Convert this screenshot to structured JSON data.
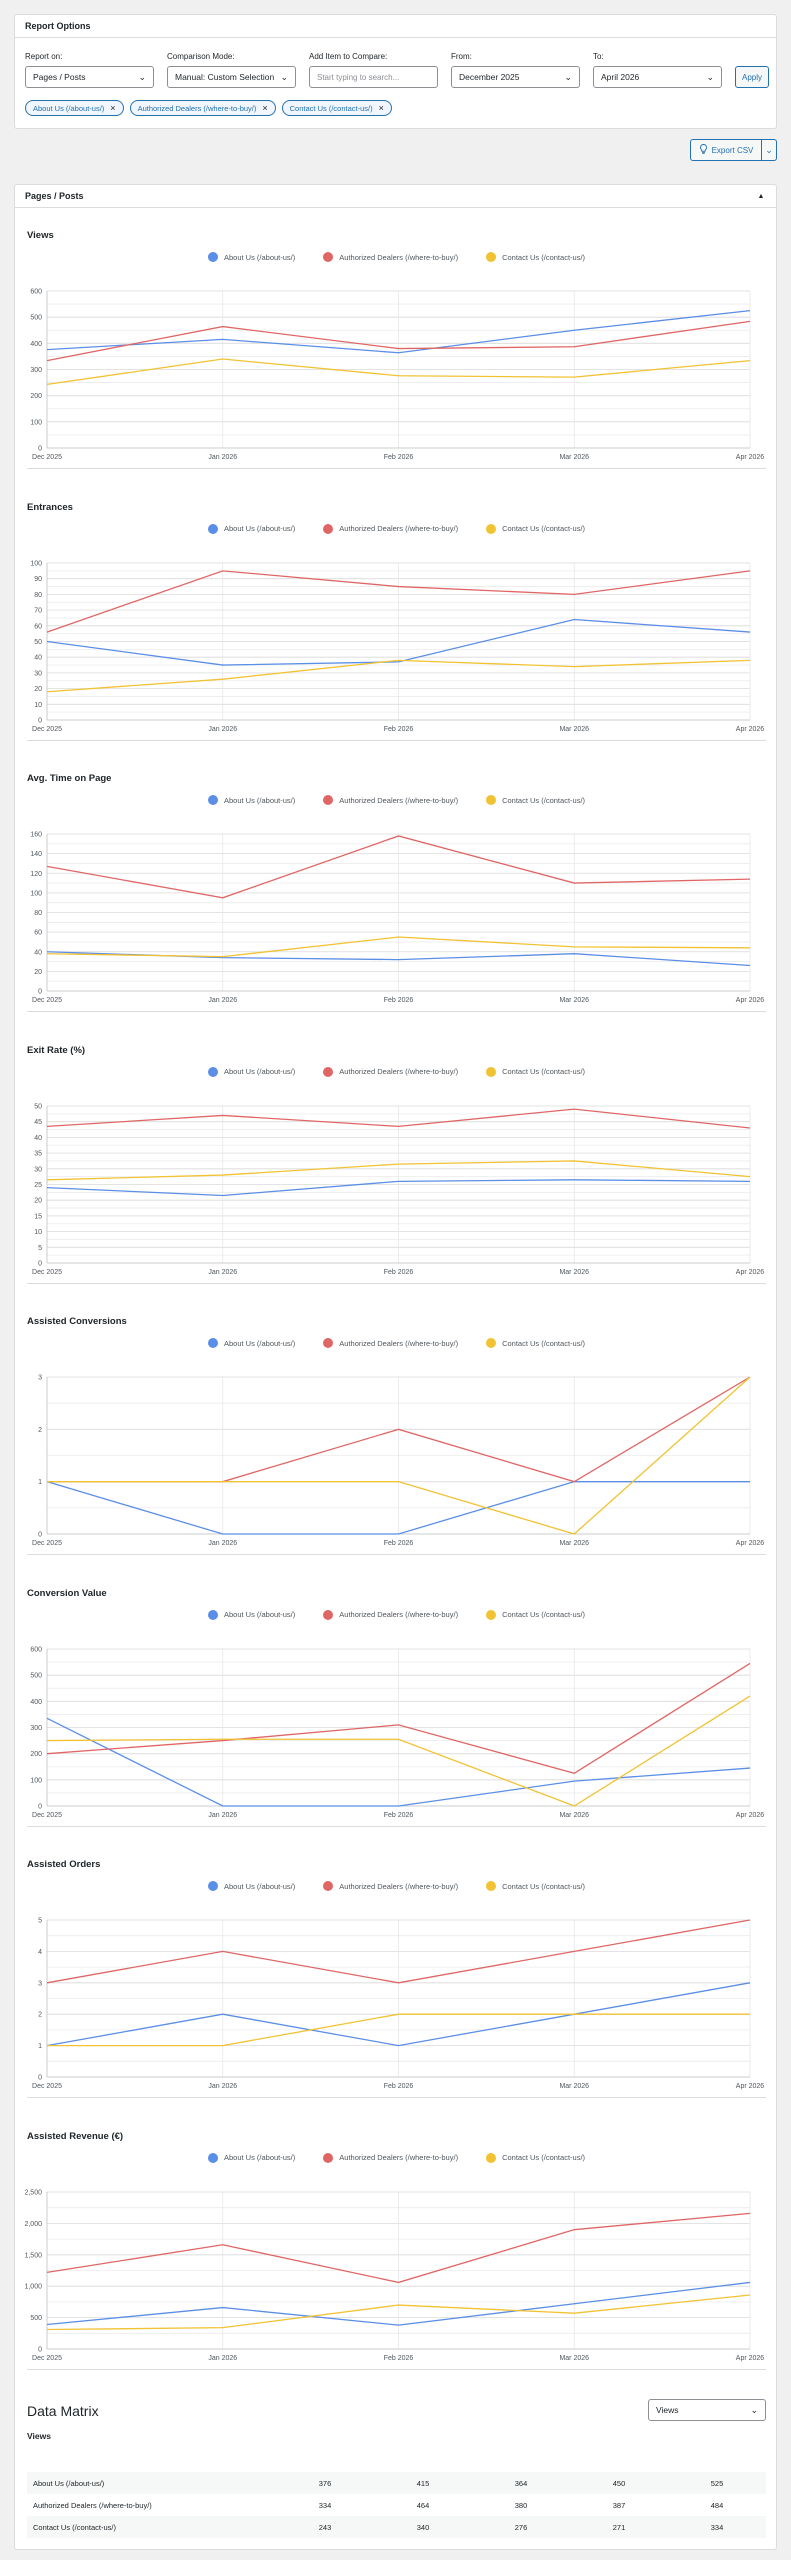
{
  "report_options": {
    "title": "Report Options",
    "report_on": {
      "label": "Report on:",
      "value": "Pages / Posts"
    },
    "comparison_mode": {
      "label": "Comparison Mode:",
      "value": "Manual: Custom Selection"
    },
    "add_item": {
      "label": "Add Item to Compare:",
      "placeholder": "Start typing to search..."
    },
    "from": {
      "label": "From:",
      "value": "December 2025"
    },
    "to": {
      "label": "To:",
      "value": "April 2026"
    },
    "apply_label": "Apply",
    "chips": [
      "About Us (/about-us/)",
      "Authorized Dealers (/where-to-buy/)",
      "Contact Us (/contact-us/)"
    ]
  },
  "export": {
    "label": "Export CSV",
    "icon": "lightbulb-icon"
  },
  "section": {
    "title": "Pages / Posts"
  },
  "colors": {
    "about": "#5b8ee6",
    "dealers": "#e06666",
    "contact": "#f1c232"
  },
  "legend": [
    "About Us (/about-us/)",
    "Authorized Dealers (/where-to-buy/)",
    "Contact Us (/contact-us/)"
  ],
  "chart_data": [
    {
      "type": "line",
      "title": "Views",
      "categories": [
        "Dec 2025",
        "Jan 2026",
        "Feb 2026",
        "Mar 2026",
        "Apr 2026"
      ],
      "ylim": [
        0,
        600
      ],
      "yticks": [
        0,
        100,
        200,
        300,
        400,
        500,
        600
      ],
      "series": [
        {
          "name": "About Us (/about-us/)",
          "values": [
            376,
            415,
            364,
            450,
            525
          ]
        },
        {
          "name": "Authorized Dealers (/where-to-buy/)",
          "values": [
            334,
            464,
            380,
            387,
            484
          ]
        },
        {
          "name": "Contact Us (/contact-us/)",
          "values": [
            243,
            340,
            276,
            271,
            334
          ]
        }
      ]
    },
    {
      "type": "line",
      "title": "Entrances",
      "categories": [
        "Dec 2025",
        "Jan 2026",
        "Feb 2026",
        "Mar 2026",
        "Apr 2026"
      ],
      "ylim": [
        0,
        100
      ],
      "yticks": [
        0,
        10,
        20,
        30,
        40,
        50,
        60,
        70,
        80,
        90,
        100
      ],
      "series": [
        {
          "name": "About Us (/about-us/)",
          "values": [
            50,
            35,
            37,
            64,
            56
          ]
        },
        {
          "name": "Authorized Dealers (/where-to-buy/)",
          "values": [
            56,
            95,
            85,
            80,
            95
          ]
        },
        {
          "name": "Contact Us (/contact-us/)",
          "values": [
            18,
            26,
            38,
            34,
            38
          ]
        }
      ]
    },
    {
      "type": "line",
      "title": "Avg. Time on Page",
      "categories": [
        "Dec 2025",
        "Jan 2026",
        "Feb 2026",
        "Mar 2026",
        "Apr 2026"
      ],
      "ylim": [
        0,
        160
      ],
      "yticks": [
        0,
        20,
        40,
        60,
        80,
        100,
        120,
        140,
        160
      ],
      "series": [
        {
          "name": "About Us (/about-us/)",
          "values": [
            40,
            34,
            32,
            38,
            26
          ]
        },
        {
          "name": "Authorized Dealers (/where-to-buy/)",
          "values": [
            127,
            95,
            158,
            110,
            114
          ]
        },
        {
          "name": "Contact Us (/contact-us/)",
          "values": [
            38,
            35,
            55,
            45,
            44
          ]
        }
      ]
    },
    {
      "type": "line",
      "title": "Exit Rate (%)",
      "categories": [
        "Dec 2025",
        "Jan 2026",
        "Feb 2026",
        "Mar 2026",
        "Apr 2026"
      ],
      "ylim": [
        0,
        50
      ],
      "yticks": [
        0,
        5,
        10,
        15,
        20,
        25,
        30,
        35,
        40,
        45,
        50
      ],
      "series": [
        {
          "name": "About Us (/about-us/)",
          "values": [
            24,
            21.5,
            26,
            26.5,
            26
          ]
        },
        {
          "name": "Authorized Dealers (/where-to-buy/)",
          "values": [
            43.5,
            47,
            43.5,
            49,
            43
          ]
        },
        {
          "name": "Contact Us (/contact-us/)",
          "values": [
            26.5,
            28,
            31.5,
            32.5,
            27.5
          ]
        }
      ]
    },
    {
      "type": "line",
      "title": "Assisted Conversions",
      "categories": [
        "Dec 2025",
        "Jan 2026",
        "Feb 2026",
        "Mar 2026",
        "Apr 2026"
      ],
      "ylim": [
        0,
        3
      ],
      "yticks": [
        0,
        1,
        2,
        3
      ],
      "series": [
        {
          "name": "About Us (/about-us/)",
          "values": [
            1,
            0,
            0,
            1,
            1
          ]
        },
        {
          "name": "Authorized Dealers (/where-to-buy/)",
          "values": [
            1,
            1,
            2,
            1,
            3
          ]
        },
        {
          "name": "Contact Us (/contact-us/)",
          "values": [
            1,
            1,
            1,
            0,
            3
          ]
        }
      ]
    },
    {
      "type": "line",
      "title": "Conversion Value",
      "categories": [
        "Dec 2025",
        "Jan 2026",
        "Feb 2026",
        "Mar 2026",
        "Apr 2026"
      ],
      "ylim": [
        0,
        600
      ],
      "yticks": [
        0,
        100,
        200,
        300,
        400,
        500,
        600
      ],
      "series": [
        {
          "name": "About Us (/about-us/)",
          "values": [
            335,
            0,
            0,
            95,
            145
          ]
        },
        {
          "name": "Authorized Dealers (/where-to-buy/)",
          "values": [
            200,
            250,
            310,
            125,
            545
          ]
        },
        {
          "name": "Contact Us (/contact-us/)",
          "values": [
            250,
            255,
            255,
            0,
            420
          ]
        }
      ]
    },
    {
      "type": "line",
      "title": "Assisted Orders",
      "categories": [
        "Dec 2025",
        "Jan 2026",
        "Feb 2026",
        "Mar 2026",
        "Apr 2026"
      ],
      "ylim": [
        0,
        5
      ],
      "yticks": [
        0,
        1,
        2,
        3,
        4,
        5
      ],
      "series": [
        {
          "name": "About Us (/about-us/)",
          "values": [
            1,
            2,
            1,
            2,
            3
          ]
        },
        {
          "name": "Authorized Dealers (/where-to-buy/)",
          "values": [
            3,
            4,
            3,
            4,
            5
          ]
        },
        {
          "name": "Contact Us (/contact-us/)",
          "values": [
            1,
            1,
            2,
            2,
            2
          ]
        }
      ]
    },
    {
      "type": "line",
      "title": "Assisted Revenue (€)",
      "categories": [
        "Dec 2025",
        "Jan 2026",
        "Feb 2026",
        "Mar 2026",
        "Apr 2026"
      ],
      "ylim": [
        0,
        2500
      ],
      "yticks": [
        0,
        500,
        1000,
        1500,
        2000,
        2500
      ],
      "ytick_labels": [
        "0",
        "500",
        "1,000",
        "1,500",
        "2,000",
        "2,500"
      ],
      "series": [
        {
          "name": "About Us (/about-us/)",
          "values": [
            390,
            660,
            380,
            720,
            1060
          ]
        },
        {
          "name": "Authorized Dealers (/where-to-buy/)",
          "values": [
            1220,
            1660,
            1060,
            1900,
            2160
          ]
        },
        {
          "name": "Contact Us (/contact-us/)",
          "values": [
            310,
            340,
            700,
            570,
            860
          ]
        }
      ]
    }
  ],
  "data_matrix": {
    "title": "Data Matrix",
    "metric_select": "Views",
    "subtitle": "Views",
    "rows": [
      {
        "name": "About Us (/about-us/)",
        "values": [
          "376",
          "415",
          "364",
          "450",
          "525"
        ]
      },
      {
        "name": "Authorized Dealers (/where-to-buy/)",
        "values": [
          "334",
          "464",
          "380",
          "387",
          "484"
        ]
      },
      {
        "name": "Contact Us (/contact-us/)",
        "values": [
          "243",
          "340",
          "276",
          "271",
          "334"
        ]
      }
    ]
  }
}
